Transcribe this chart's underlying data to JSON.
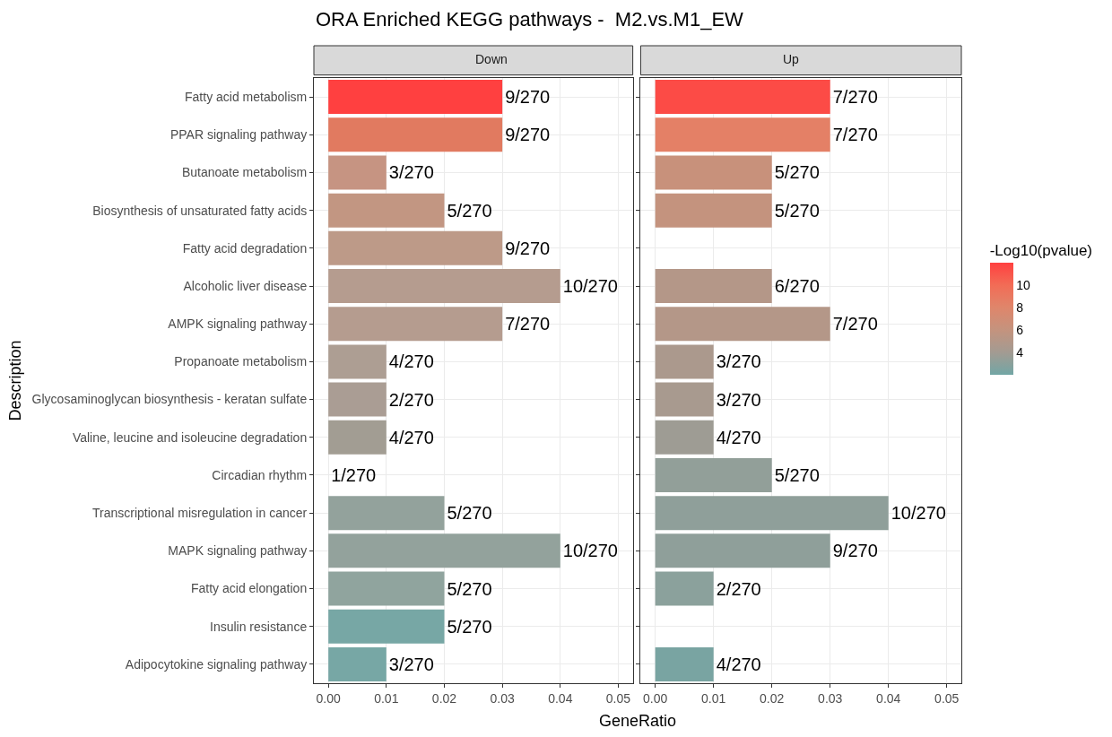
{
  "chart_data": [
    {
      "type": "bar",
      "orientation": "horizontal",
      "title": "ORA Enriched KEGG pathways -  M2.vs.M1_EW",
      "subtitle": "Down",
      "xlabel": "GeneRatio",
      "ylabel": "Description",
      "categories": [
        "Fatty acid metabolism",
        "PPAR signaling pathway",
        "Butanoate metabolism",
        "Biosynthesis of unsaturated fatty acids",
        "Fatty acid degradation",
        "Alcoholic liver disease",
        "AMPK signaling pathway",
        "Propanoate metabolism",
        "Glycosaminoglycan biosynthesis - keratan sulfate",
        "Valine, leucine and isoleucine degradation",
        "Circadian rhythm",
        "Transcriptional misregulation in cancer",
        "MAPK signaling pathway",
        "Fatty acid elongation",
        "Insulin resistance",
        "Adipocytokine signaling pathway"
      ],
      "values": [
        0.03,
        0.03,
        0.01,
        0.02,
        0.03,
        0.04,
        0.03,
        0.01,
        0.01,
        0.01,
        0,
        0.02,
        0.04,
        0.02,
        0.02,
        0.01
      ],
      "colors": [
        "#ff4040",
        "#e17a60",
        "#c69482",
        "#c29682",
        "#bd9a88",
        "#b59c8f",
        "#b59c8f",
        "#ad9e93",
        "#aa9d94",
        "#a29d93",
        "#9aa09a",
        "#93a29c",
        "#93a29c",
        "#90a49e",
        "#77a7a5",
        "#77a7a5"
      ],
      "value_labels": [
        "9/270",
        "9/270",
        "3/270",
        "5/270",
        "9/270",
        "10/270",
        "7/270",
        "4/270",
        "2/270",
        "4/270",
        "1/270",
        "5/270",
        "10/270",
        "5/270",
        "5/270",
        "3/270"
      ],
      "xlim": [
        -0.0025,
        0.0525
      ],
      "xticks": [
        {
          "value": 0,
          "label": "0.00"
        },
        {
          "value": 0.01,
          "label": "0.01"
        },
        {
          "value": 0.02,
          "label": "0.02"
        },
        {
          "value": 0.03,
          "label": "0.03"
        },
        {
          "value": 0.04,
          "label": "0.04"
        },
        {
          "value": 0.05,
          "label": "0.05"
        }
      ],
      "grid": true
    },
    {
      "type": "bar",
      "orientation": "horizontal",
      "subtitle": "Up",
      "tick_labels": "x",
      "clabel": "-Log10(pvalue)",
      "clim": [
        2,
        12
      ],
      "cticks": [
        4,
        6,
        8,
        10
      ],
      "categories": [
        "Fatty acid metabolism",
        "PPAR signaling pathway",
        "Butanoate metabolism",
        "Biosynthesis of unsaturated fatty acids",
        "Fatty acid degradation",
        "Alcoholic liver disease",
        "AMPK signaling pathway",
        "Propanoate metabolism",
        "Glycosaminoglycan biosynthesis - keratan sulfate",
        "Valine, leucine and isoleucine degradation",
        "Circadian rhythm",
        "Transcriptional misregulation in cancer",
        "MAPK signaling pathway",
        "Fatty acid elongation",
        "Insulin resistance",
        "Adipocytokine signaling pathway"
      ],
      "values": [
        0.03,
        0.03,
        0.02,
        0.02,
        null,
        0.02,
        0.03,
        0.01,
        0.01,
        0.01,
        0.02,
        0.04,
        0.03,
        0.01,
        null,
        0.01
      ],
      "cvalues": [
        11.5,
        8.5,
        6.3,
        6.0,
        null,
        5.0,
        5.0,
        4.5,
        4.3,
        3.8,
        3.3,
        3.2,
        3.2,
        3.0,
        null,
        2.3
      ],
      "value_labels": [
        "7/270",
        "7/270",
        "5/270",
        "5/270",
        null,
        "6/270",
        "7/270",
        "3/270",
        "3/270",
        "4/270",
        "5/270",
        "10/270",
        "9/270",
        "2/270",
        null,
        "4/270"
      ],
      "xlim": [
        -0.0025,
        0.0525
      ],
      "xticks": [
        {
          "value": 0,
          "label": "0.00"
        },
        {
          "value": 0.01,
          "label": "0.01"
        },
        {
          "value": 0.02,
          "label": "0.02"
        },
        {
          "value": 0.03,
          "label": "0.03"
        },
        {
          "value": 0.04,
          "label": "0.04"
        },
        {
          "value": 0.05,
          "label": "0.05"
        }
      ],
      "grid": true
    }
  ]
}
